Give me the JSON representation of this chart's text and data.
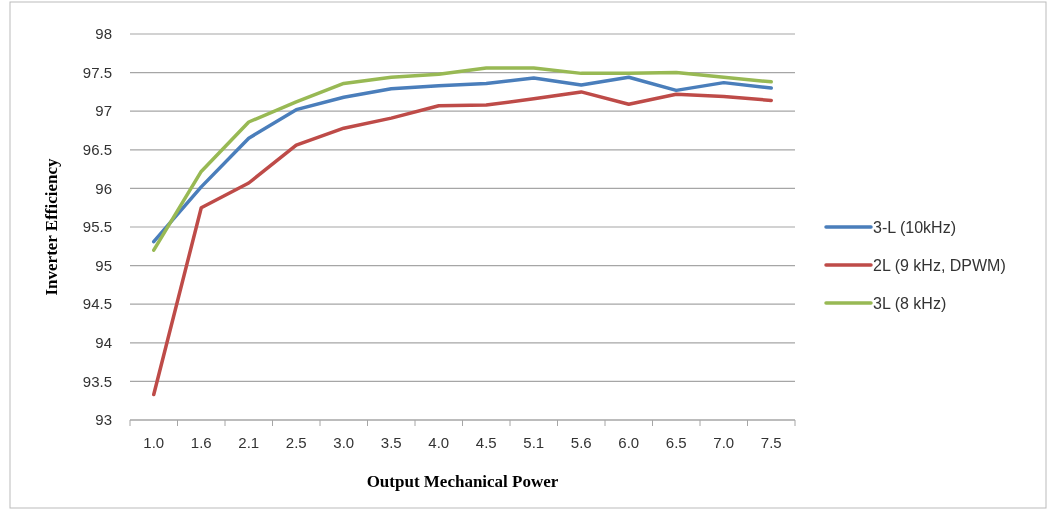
{
  "chart_data": {
    "type": "line",
    "xlabel": "Output Mechanical Power",
    "ylabel": "Inverter Efficiency",
    "categories": [
      "1.0",
      "1.6",
      "2.1",
      "2.5",
      "3.0",
      "3.5",
      "4.0",
      "4.5",
      "5.1",
      "5.6",
      "6.0",
      "6.5",
      "7.0",
      "7.5"
    ],
    "series": [
      {
        "name": "3-L (10kHz)",
        "color": "#4a7ebb",
        "values": [
          95.31,
          96.02,
          96.65,
          97.02,
          97.18,
          97.29,
          97.33,
          97.36,
          97.43,
          97.34,
          97.44,
          97.27,
          97.37,
          97.3
        ]
      },
      {
        "name": "2L (9 kHz, DPWM)",
        "color": "#be4b48",
        "values": [
          93.33,
          95.75,
          96.07,
          96.56,
          96.78,
          96.91,
          97.07,
          97.08,
          97.16,
          97.25,
          97.09,
          97.22,
          97.19,
          97.14
        ]
      },
      {
        "name": "3L (8 kHz)",
        "color": "#98b954",
        "values": [
          95.2,
          96.22,
          96.86,
          97.12,
          97.36,
          97.44,
          97.48,
          97.56,
          97.56,
          97.49,
          97.49,
          97.5,
          97.44,
          97.38
        ]
      }
    ],
    "ylim": [
      93,
      98
    ],
    "yticks": [
      93,
      93.5,
      94,
      94.5,
      95,
      95.5,
      96,
      96.5,
      97,
      97.5,
      98
    ],
    "grid": "y",
    "legend": "right",
    "marker": "none",
    "line_style": "solid"
  }
}
